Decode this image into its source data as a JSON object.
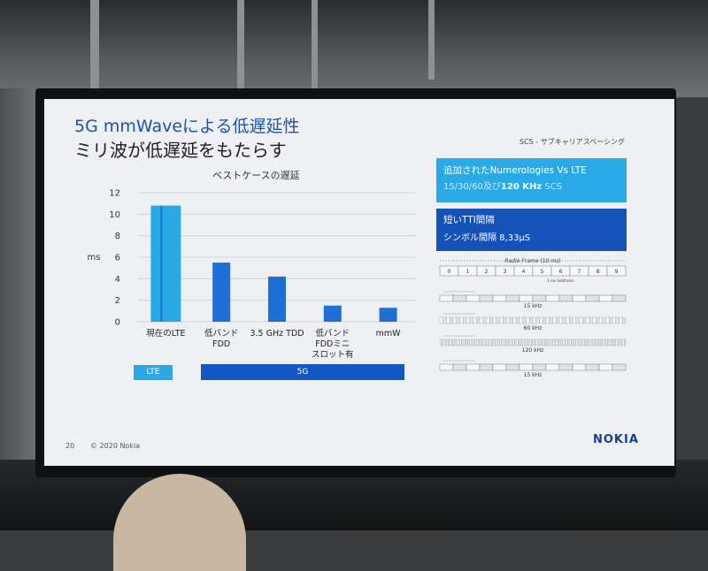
{
  "slide": {
    "title_line1": "5G mmWaveによる低遅延性",
    "title_line2": "ミリ波が低遅延をもたらす",
    "scs_label": "SCS - サブキャリアスペーシング",
    "footer_page": "20",
    "footer_copyright": "© 2020 Nokia",
    "logo_text": "NOKIA"
  },
  "info_boxes": {
    "box1_line1": "追加されたNumerologies Vs LTE",
    "box1_line2_a": "15/30/60及び",
    "box1_line2_b": "120 KHz",
    "box1_line2_c": " SCS",
    "box1_color": "#29a9e6",
    "box2_line1": "短いTTI間隔",
    "box2_line2": "シンボル間隔 8,33μS",
    "box2_color": "#1452b8"
  },
  "bands": {
    "lte_label": "LTE",
    "g5_label": "5G",
    "lte_color": "#29a8e6",
    "g5_color": "#1356c4"
  },
  "frame_diagram": {
    "title": "Radio Frame (10 ms)",
    "slot_numbers": [
      "0",
      "1",
      "2",
      "3",
      "4",
      "5",
      "6",
      "7",
      "8",
      "9"
    ],
    "subframe_note": "1 ms Subframe",
    "scs_labels": [
      "15 kHz",
      "60 kHz",
      "120 kHz",
      "15 kHz"
    ]
  },
  "chart_data": {
    "type": "bar",
    "title": "ベストケースの遅延",
    "ylabel": "ms",
    "ylim": [
      0,
      12
    ],
    "yticks": [
      0,
      2,
      4,
      6,
      8,
      10,
      12
    ],
    "categories": [
      {
        "lines": [
          "現在のLTE"
        ],
        "value": 10.8,
        "color": "#29a8e6"
      },
      {
        "lines": [
          "低バンド",
          "FDD"
        ],
        "value": 5.5,
        "color": "#1f6fd6"
      },
      {
        "lines": [
          "3.5 GHz TDD"
        ],
        "value": 4.2,
        "color": "#1f6fd6"
      },
      {
        "lines": [
          "低バンド",
          "FDDミニ",
          "スロット有"
        ],
        "value": 1.5,
        "color": "#1f6fd6"
      },
      {
        "lines": [
          "mmW"
        ],
        "value": 1.3,
        "color": "#1f6fd6"
      }
    ],
    "grid": true
  }
}
